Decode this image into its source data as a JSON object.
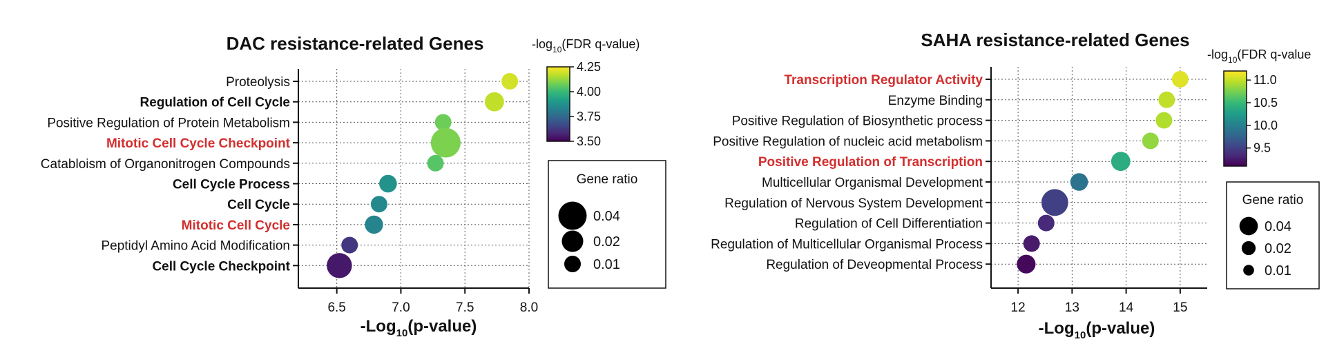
{
  "chart_data": [
    {
      "type": "scatter",
      "title": "DAC resistance-related Genes",
      "xlabel": "-Log10(p-value)",
      "xlim": [
        6.2,
        8.0
      ],
      "xticks": [
        "6.5",
        "7.0",
        "7.5",
        "8.0"
      ],
      "xtick_values": [
        6.5,
        7.0,
        7.5,
        8.0
      ],
      "categories": [
        {
          "label": "Proteolysis",
          "style": "normal",
          "x": 7.85,
          "gene_ratio": 0.01,
          "fdr": 4.2
        },
        {
          "label": "Regulation of Cell Cycle",
          "style": "bold",
          "x": 7.73,
          "gene_ratio": 0.015,
          "fdr": 4.18
        },
        {
          "label": "Positive Regulation of Protein Metabolism",
          "style": "normal",
          "x": 7.33,
          "gene_ratio": 0.01,
          "fdr": 4.08
        },
        {
          "label": "Mitotic Cell Cycle Checkpoint",
          "style": "red",
          "x": 7.35,
          "gene_ratio": 0.045,
          "fdr": 4.1
        },
        {
          "label": "Catabloism of Organonitrogen Compounds",
          "style": "normal",
          "x": 7.27,
          "gene_ratio": 0.01,
          "fdr": 4.05
        },
        {
          "label": "Cell Cycle Process",
          "style": "bold",
          "x": 6.9,
          "gene_ratio": 0.012,
          "fdr": 3.88
        },
        {
          "label": "Cell Cycle",
          "style": "bold",
          "x": 6.83,
          "gene_ratio": 0.01,
          "fdr": 3.85
        },
        {
          "label": "Mitotic Cell Cycle",
          "style": "red",
          "x": 6.79,
          "gene_ratio": 0.013,
          "fdr": 3.84
        },
        {
          "label": "Peptidyl Amino Acid Modification",
          "style": "normal",
          "x": 6.6,
          "gene_ratio": 0.01,
          "fdr": 3.62
        },
        {
          "label": "Cell Cycle Checkpoint",
          "style": "bold",
          "x": 6.52,
          "gene_ratio": 0.03,
          "fdr": 3.55
        }
      ],
      "colorbar": {
        "title_prefix": "-log",
        "title_sub": "10",
        "title_suffix": "(FDR q-value)",
        "min": 3.5,
        "max": 4.25,
        "ticks": [
          "4.25",
          "4.00",
          "3.75",
          "3.50"
        ],
        "tick_values": [
          4.25,
          4.0,
          3.75,
          3.5
        ]
      },
      "legend": {
        "title": "Gene ratio",
        "entries": [
          {
            "label": "0.04",
            "ratio": 0.04
          },
          {
            "label": "0.02",
            "ratio": 0.02
          },
          {
            "label": "0.01",
            "ratio": 0.01
          }
        ]
      }
    },
    {
      "type": "scatter",
      "title": "SAHA resistance-related Genes",
      "xlabel": "-Log10(p-value)",
      "xlim": [
        11.5,
        15.5
      ],
      "xticks": [
        "12",
        "13",
        "14",
        "15"
      ],
      "xtick_values": [
        12,
        13,
        14,
        15
      ],
      "categories": [
        {
          "label": "Transcription Regulator Activity",
          "style": "red",
          "x": 15.0,
          "gene_ratio": 0.01,
          "fdr": 11.1
        },
        {
          "label": "Enzyme Binding",
          "style": "normal",
          "x": 14.75,
          "gene_ratio": 0.01,
          "fdr": 11.0
        },
        {
          "label": "Positive Regulation of Biosynthetic process",
          "style": "normal",
          "x": 14.7,
          "gene_ratio": 0.01,
          "fdr": 10.95
        },
        {
          "label": "Positive Regulation of nucleic acid metabolism",
          "style": "normal",
          "x": 14.45,
          "gene_ratio": 0.01,
          "fdr": 10.85
        },
        {
          "label": "Positive Regulation of Transcription",
          "style": "red",
          "x": 13.9,
          "gene_ratio": 0.015,
          "fdr": 10.4
        },
        {
          "label": "Multicellular Organismal Development",
          "style": "normal",
          "x": 13.13,
          "gene_ratio": 0.012,
          "fdr": 9.9
        },
        {
          "label": "Regulation of Nervous System Development",
          "style": "normal",
          "x": 12.68,
          "gene_ratio": 0.035,
          "fdr": 9.5
        },
        {
          "label": "Regulation of Cell Differentiation",
          "style": "normal",
          "x": 12.52,
          "gene_ratio": 0.01,
          "fdr": 9.35
        },
        {
          "label": "Regulation of Multicellular Organismal Process",
          "style": "normal",
          "x": 12.25,
          "gene_ratio": 0.01,
          "fdr": 9.25
        },
        {
          "label": "Regulation of Deveopmental Process",
          "style": "normal",
          "x": 12.15,
          "gene_ratio": 0.014,
          "fdr": 9.15
        }
      ],
      "colorbar": {
        "title_prefix": "-log",
        "title_sub": "10",
        "title_suffix": "(FDR q-value",
        "min": 9.1,
        "max": 11.2,
        "ticks": [
          "11.0",
          "10.5",
          "10.0",
          "9.5"
        ],
        "tick_values": [
          11.0,
          10.5,
          10.0,
          9.5
        ]
      },
      "legend": {
        "title": "Gene ratio",
        "entries": [
          {
            "label": "0.04",
            "ratio": 0.04
          },
          {
            "label": "0.02",
            "ratio": 0.02
          },
          {
            "label": "0.01",
            "ratio": 0.01
          }
        ]
      }
    }
  ],
  "colors": {
    "red_label": "#d32f2f",
    "viridis": [
      "#440154",
      "#482878",
      "#3e4989",
      "#31688e",
      "#26828e",
      "#1f9e89",
      "#35b779",
      "#6ece58",
      "#b5de2b",
      "#fde725"
    ]
  }
}
